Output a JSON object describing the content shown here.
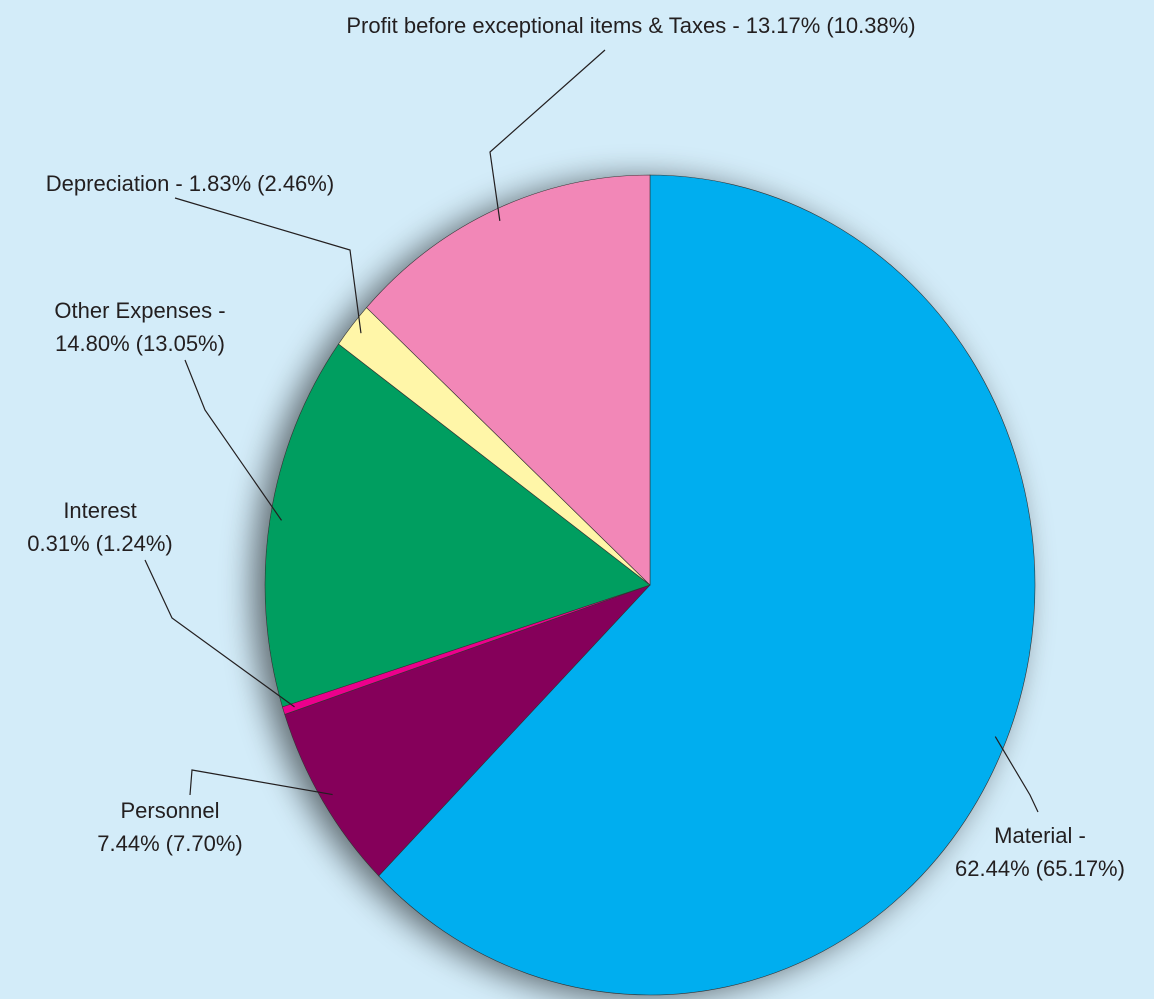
{
  "chart_data": {
    "type": "pie",
    "categories": [
      "Material -",
      "Personnel",
      "Interest",
      "Other Expenses -",
      "Depreciation -",
      "Profit before exceptional items & Taxes -"
    ],
    "values": [
      62.44,
      7.44,
      0.31,
      14.8,
      1.83,
      13.17
    ],
    "value_labels": [
      "62.44%",
      "7.44%",
      "0.31%",
      "14.80%",
      "1.83%",
      "13.17%"
    ],
    "prior_labels": [
      "(65.17%)",
      "(7.70%)",
      "(1.24%)",
      "(13.05%)",
      "(2.46%)",
      "(10.38%)"
    ],
    "colors": [
      "#00aeef",
      "#85005a",
      "#ec008c",
      "#009e60",
      "#fff6a8",
      "#f287b7"
    ]
  }
}
